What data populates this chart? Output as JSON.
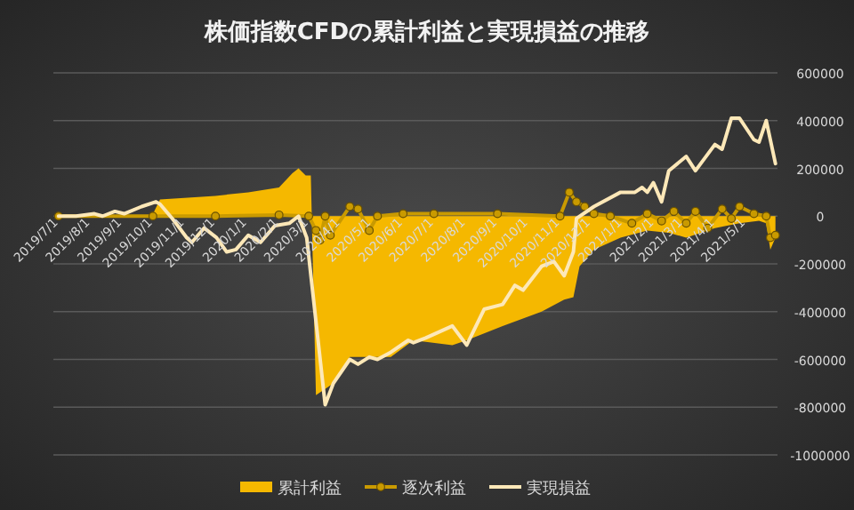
{
  "chart_data": {
    "type": "line",
    "title": "株価指数CFDの累計利益と実現損益の推移",
    "xlim": [
      "2019-06-26",
      "2021-06-01"
    ],
    "xticks": [
      {
        "value": "2019-07-01",
        "label": "2019/7/1"
      },
      {
        "value": "2019-08-01",
        "label": "2019/8/1"
      },
      {
        "value": "2019-09-01",
        "label": "2019/9/1"
      },
      {
        "value": "2019-10-01",
        "label": "2019/10/1"
      },
      {
        "value": "2019-11-01",
        "label": "2019/11/1"
      },
      {
        "value": "2019-12-01",
        "label": "2019/12/1"
      },
      {
        "value": "2020-01-01",
        "label": "2020/1/1"
      },
      {
        "value": "2020-02-01",
        "label": "2020/2/1"
      },
      {
        "value": "2020-03-01",
        "label": "2020/3/1"
      },
      {
        "value": "2020-04-01",
        "label": "2020/4/1"
      },
      {
        "value": "2020-05-01",
        "label": "2020/5/1"
      },
      {
        "value": "2020-06-01",
        "label": "2020/6/1"
      },
      {
        "value": "2020-07-01",
        "label": "2020/7/1"
      },
      {
        "value": "2020-08-01",
        "label": "2020/8/1"
      },
      {
        "value": "2020-09-01",
        "label": "2020/9/1"
      },
      {
        "value": "2020-10-01",
        "label": "2020/10/1"
      },
      {
        "value": "2020-11-01",
        "label": "2020/11/1"
      },
      {
        "value": "2020-12-01",
        "label": "2020/12/1"
      },
      {
        "value": "2021-01-01",
        "label": "2021/1/1"
      },
      {
        "value": "2021-02-01",
        "label": "2021/2/1"
      },
      {
        "value": "2021-03-01",
        "label": "2021/3/1"
      },
      {
        "value": "2021-04-01",
        "label": "2021/4/1"
      },
      {
        "value": "2021-05-01",
        "label": "2021/5/1"
      }
    ],
    "ylim": [
      -1000000,
      600000
    ],
    "yticks": [
      -1000000,
      -800000,
      -600000,
      -400000,
      -200000,
      0,
      200000,
      400000,
      600000
    ],
    "grid": "y",
    "legend": "bottom",
    "series": [
      {
        "name": "累計利益",
        "type": "area",
        "color": "#f5b800",
        "x": [
          "2019-07-01",
          "2019-09-30",
          "2019-10-08",
          "2019-12-01",
          "2020-01-02",
          "2020-02-01",
          "2020-02-14",
          "2020-02-20",
          "2020-02-27",
          "2020-03-03",
          "2020-03-08",
          "2020-03-25",
          "2020-04-10",
          "2020-05-20",
          "2020-06-11",
          "2020-07-19",
          "2020-08-02",
          "2020-09-06",
          "2020-10-14",
          "2020-11-05",
          "2020-11-14",
          "2020-11-20",
          "2020-12-04",
          "2020-12-30",
          "2021-01-25",
          "2021-02-15",
          "2021-03-04",
          "2021-04-01",
          "2021-04-25",
          "2021-05-14",
          "2021-05-21",
          "2021-05-25",
          "2021-05-30"
        ],
        "values": [
          0,
          0,
          70000,
          85000,
          100000,
          120000,
          180000,
          200000,
          170000,
          170000,
          -750000,
          -700000,
          -590000,
          -590000,
          -520000,
          -540000,
          -520000,
          -460000,
          -400000,
          -350000,
          -340000,
          -210000,
          -140000,
          -90000,
          -60000,
          -70000,
          -90000,
          -50000,
          -30000,
          -20000,
          -30000,
          -140000,
          -90000
        ]
      },
      {
        "name": "逐次利益",
        "type": "line",
        "marker": "circle",
        "color": "#c99a00",
        "x": [
          "2019-07-01",
          "2019-10-01",
          "2019-12-01",
          "2020-02-01",
          "2020-03-01",
          "2020-03-08",
          "2020-03-12",
          "2020-03-17",
          "2020-03-22",
          "2020-04-10",
          "2020-04-18",
          "2020-04-29",
          "2020-05-07",
          "2020-06-01",
          "2020-07-01",
          "2020-09-01",
          "2020-11-01",
          "2020-11-10",
          "2020-11-17",
          "2020-11-25",
          "2020-12-04",
          "2020-12-20",
          "2021-01-10",
          "2021-01-25",
          "2021-02-08",
          "2021-02-20",
          "2021-03-04",
          "2021-03-13",
          "2021-03-25",
          "2021-04-08",
          "2021-04-17",
          "2021-04-25",
          "2021-05-09",
          "2021-05-21",
          "2021-05-25",
          "2021-05-30"
        ],
        "values": [
          0,
          0,
          0,
          5000,
          0,
          -60000,
          -100000,
          0,
          -80000,
          40000,
          30000,
          -60000,
          0,
          10000,
          10000,
          10000,
          0,
          100000,
          60000,
          40000,
          10000,
          0,
          -30000,
          10000,
          -20000,
          20000,
          -30000,
          20000,
          -50000,
          30000,
          -10000,
          40000,
          10000,
          0,
          -90000,
          -80000
        ]
      },
      {
        "name": "実現損益",
        "type": "line",
        "color": "#fde8b8",
        "x": [
          "2019-07-01",
          "2019-07-18",
          "2019-08-05",
          "2019-08-13",
          "2019-08-25",
          "2019-09-03",
          "2019-09-20",
          "2019-10-04",
          "2019-10-08",
          "2019-10-20",
          "2019-11-03",
          "2019-11-08",
          "2019-11-20",
          "2019-12-02",
          "2019-12-12",
          "2019-12-21",
          "2020-01-02",
          "2020-01-14",
          "2020-01-28",
          "2020-02-11",
          "2020-02-20",
          "2020-02-28",
          "2020-03-17",
          "2020-03-25",
          "2020-04-10",
          "2020-04-18",
          "2020-04-29",
          "2020-05-07",
          "2020-05-20",
          "2020-06-06",
          "2020-06-11",
          "2020-06-23",
          "2020-07-19",
          "2020-08-02",
          "2020-08-19",
          "2020-09-06",
          "2020-09-18",
          "2020-09-26",
          "2020-10-14",
          "2020-10-26",
          "2020-11-05",
          "2020-11-14",
          "2020-11-17",
          "2020-12-04",
          "2020-12-30",
          "2021-01-13",
          "2021-01-20",
          "2021-01-25",
          "2021-01-31",
          "2021-02-08",
          "2021-02-15",
          "2021-03-04",
          "2021-03-13",
          "2021-04-01",
          "2021-04-08",
          "2021-04-17",
          "2021-04-25",
          "2021-05-09",
          "2021-05-14",
          "2021-05-21",
          "2021-05-30"
        ],
        "values": [
          0,
          0,
          10000,
          0,
          20000,
          10000,
          40000,
          60000,
          50000,
          -10000,
          -90000,
          -110000,
          -50000,
          -90000,
          -150000,
          -140000,
          -80000,
          -110000,
          -40000,
          -30000,
          0,
          -90000,
          -790000,
          -700000,
          -600000,
          -620000,
          -590000,
          -600000,
          -570000,
          -520000,
          -530000,
          -510000,
          -460000,
          -540000,
          -390000,
          -370000,
          -290000,
          -310000,
          -210000,
          -190000,
          -250000,
          -150000,
          -10000,
          40000,
          100000,
          100000,
          120000,
          100000,
          140000,
          60000,
          190000,
          250000,
          190000,
          300000,
          280000,
          410000,
          410000,
          320000,
          310000,
          400000,
          220000
        ]
      }
    ]
  }
}
